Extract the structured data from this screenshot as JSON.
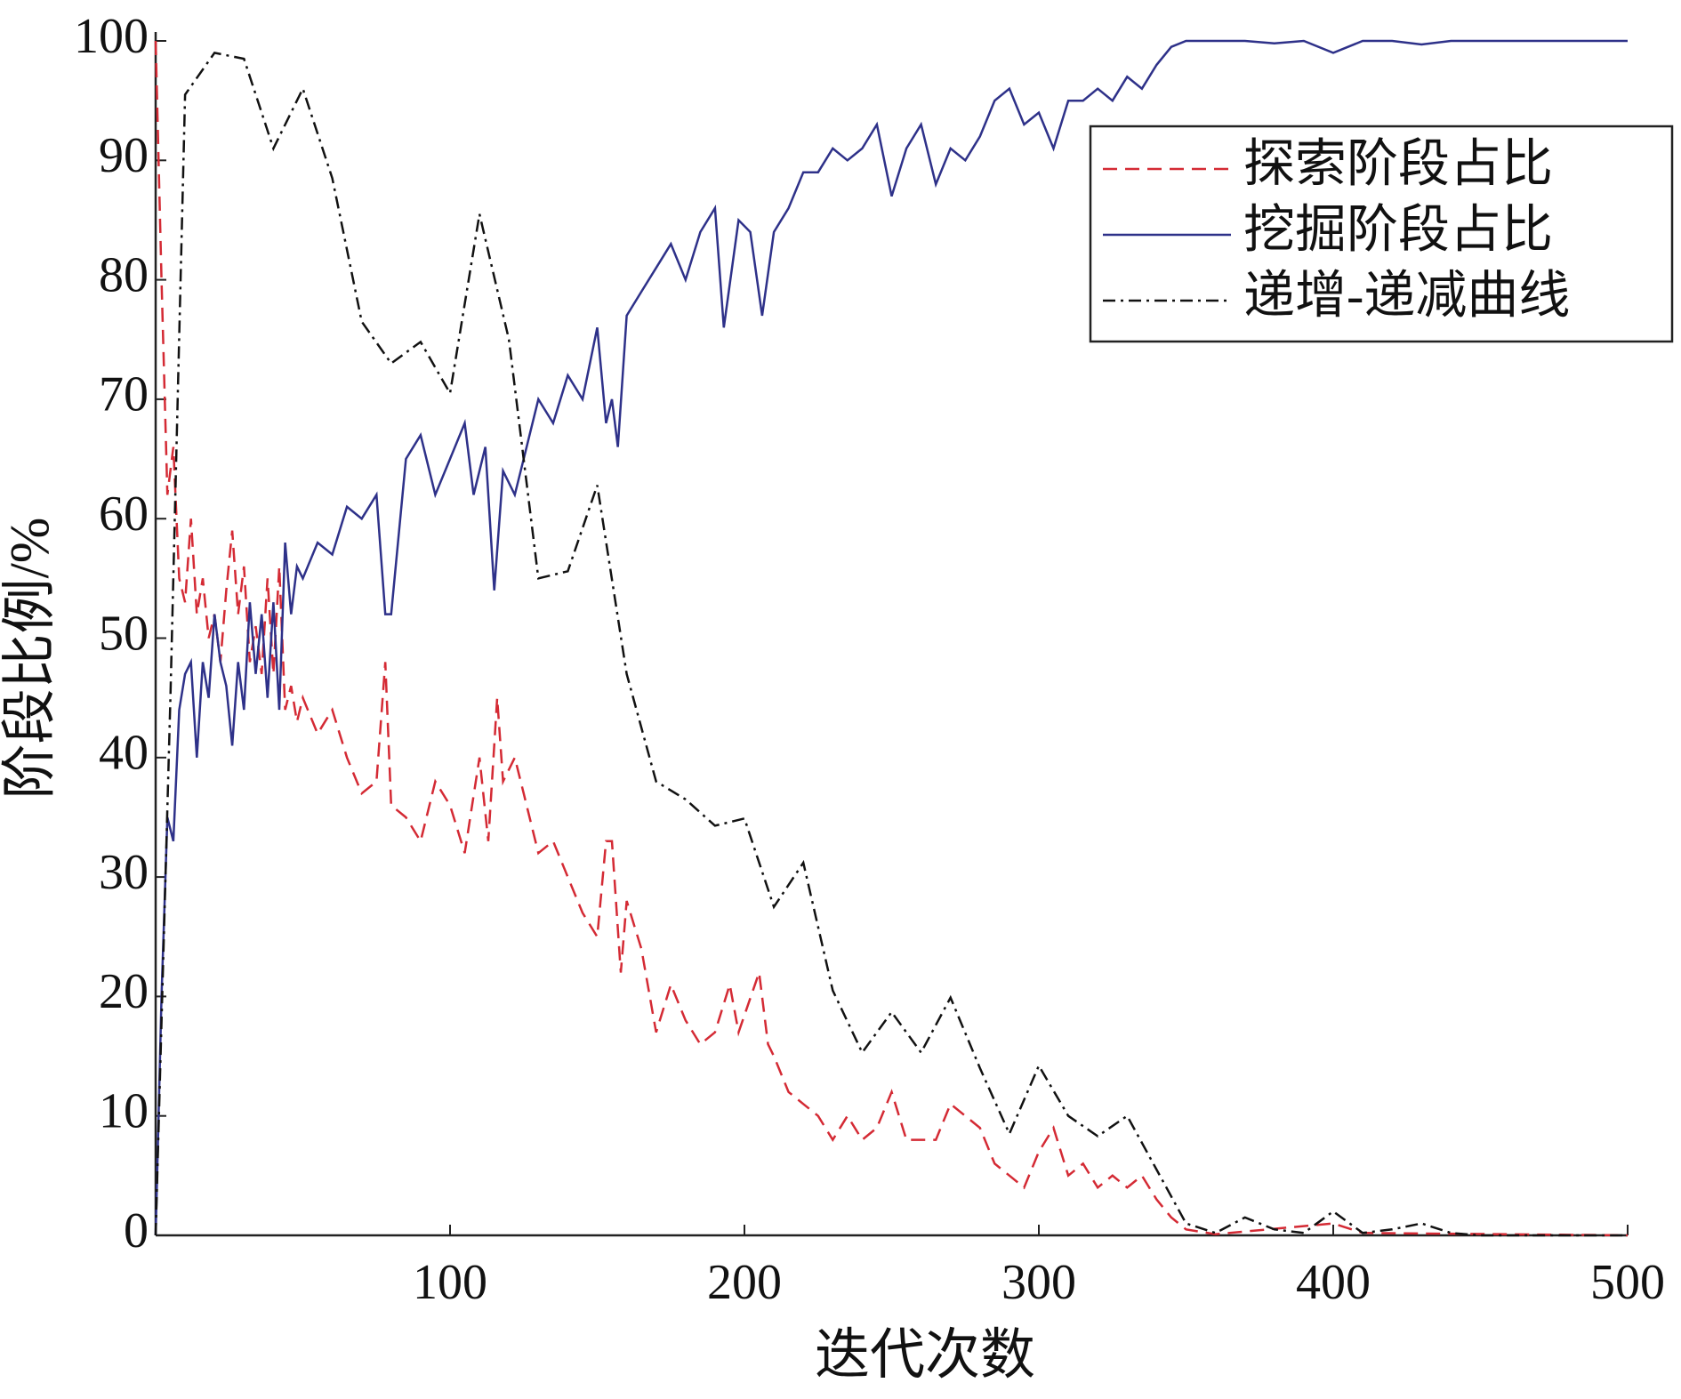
{
  "chart_data": {
    "type": "line",
    "xlabel": "迭代次数",
    "ylabel": "阶段比例/%",
    "xlim": [
      0,
      500
    ],
    "xticks": [
      100,
      200,
      300,
      400,
      500
    ],
    "ylim": [
      0,
      100
    ],
    "yticks": [
      0,
      10,
      20,
      30,
      40,
      50,
      60,
      70,
      80,
      90,
      100
    ],
    "legend": "upper right",
    "series": [
      {
        "name": "探索阶段占比",
        "color": "#d42a34",
        "style": "dashed",
        "x": [
          0,
          2,
          4,
          6,
          8,
          10,
          12,
          14,
          16,
          18,
          20,
          22,
          24,
          26,
          28,
          30,
          32,
          34,
          36,
          38,
          40,
          42,
          44,
          46,
          48,
          50,
          55,
          60,
          65,
          70,
          75,
          78,
          80,
          85,
          90,
          95,
          100,
          105,
          110,
          113,
          116,
          118,
          122,
          125,
          130,
          135,
          140,
          145,
          150,
          153,
          155,
          158,
          160,
          165,
          170,
          175,
          180,
          185,
          190,
          195,
          198,
          205,
          208,
          210,
          215,
          220,
          225,
          230,
          235,
          240,
          245,
          250,
          255,
          260,
          265,
          270,
          275,
          280,
          285,
          290,
          295,
          300,
          305,
          310,
          315,
          320,
          325,
          330,
          335,
          340,
          345,
          350,
          360,
          400,
          410,
          500
        ],
        "values": [
          100,
          80,
          62,
          66,
          55,
          53,
          60,
          52,
          55,
          50,
          52,
          48,
          54,
          59,
          52,
          56,
          48,
          51,
          47,
          55,
          47,
          56,
          44,
          46,
          43,
          45,
          42,
          44,
          40,
          37,
          38,
          48,
          36,
          35,
          33,
          38,
          36,
          32,
          40,
          33,
          45,
          38,
          40,
          37,
          32,
          33,
          30,
          27,
          25,
          33,
          33,
          22,
          28,
          24,
          17,
          21,
          18,
          16,
          17,
          21,
          17,
          22,
          16,
          15,
          12,
          11,
          10,
          8,
          10,
          8,
          9,
          12,
          8,
          8,
          8,
          11,
          10,
          9,
          6,
          5,
          4,
          7,
          9,
          5,
          6,
          4,
          5,
          4,
          5,
          3,
          1.5,
          0.5,
          0.1,
          1,
          0.2,
          0
        ]
      },
      {
        "name": "挖掘阶段占比",
        "color": "#2e3189",
        "style": "solid",
        "x": [
          0,
          2,
          4,
          6,
          8,
          10,
          12,
          14,
          16,
          18,
          20,
          22,
          24,
          26,
          28,
          30,
          32,
          34,
          36,
          38,
          40,
          42,
          44,
          46,
          48,
          50,
          55,
          60,
          65,
          70,
          75,
          78,
          80,
          85,
          90,
          95,
          100,
          105,
          108,
          112,
          115,
          118,
          122,
          125,
          130,
          135,
          140,
          145,
          150,
          153,
          155,
          157,
          160,
          165,
          170,
          175,
          180,
          185,
          190,
          193,
          198,
          202,
          206,
          210,
          215,
          220,
          225,
          230,
          235,
          240,
          245,
          250,
          255,
          260,
          265,
          270,
          275,
          280,
          285,
          290,
          295,
          300,
          305,
          310,
          315,
          320,
          325,
          330,
          335,
          340,
          345,
          350,
          360,
          370,
          380,
          390,
          400,
          405,
          410,
          420,
          430,
          440,
          500
        ],
        "values": [
          0,
          20,
          35,
          33,
          44,
          47,
          48,
          40,
          48,
          45,
          52,
          48,
          46,
          41,
          48,
          44,
          53,
          47,
          52,
          45,
          53,
          44,
          58,
          52,
          56,
          55,
          58,
          57,
          61,
          60,
          62,
          52,
          52,
          65,
          67,
          62,
          65,
          68,
          62,
          66,
          54,
          64,
          62,
          65,
          70,
          68,
          72,
          70,
          76,
          68,
          70,
          66,
          77,
          79,
          81,
          83,
          80,
          84,
          86,
          76,
          85,
          84,
          77,
          84,
          86,
          89,
          89,
          91,
          90,
          91,
          93,
          87,
          91,
          93,
          88,
          91,
          90,
          92,
          95,
          96,
          93,
          94,
          91,
          95,
          95,
          96,
          95,
          97,
          96,
          98,
          99.5,
          100,
          100,
          100,
          99.8,
          100,
          99,
          99.5,
          100,
          100,
          99.7,
          100,
          100
        ]
      },
      {
        "name": "递增-递减曲线",
        "color": "#111111",
        "style": "dashdot",
        "x": [
          0,
          5,
          10,
          20,
          30,
          40,
          50,
          60,
          70,
          80,
          90,
          100,
          110,
          120,
          130,
          140,
          150,
          160,
          170,
          180,
          190,
          200,
          210,
          220,
          230,
          240,
          250,
          260,
          270,
          280,
          290,
          300,
          310,
          320,
          330,
          340,
          350,
          360,
          370,
          380,
          390,
          400,
          410,
          420,
          430,
          440,
          450,
          500
        ],
        "values": [
          0,
          45,
          95.5,
          99,
          98.5,
          91,
          96,
          88.5,
          76.5,
          73,
          74.8,
          70.5,
          85.5,
          75,
          55,
          55.6,
          62.8,
          47,
          38,
          36.5,
          34.3,
          34.9,
          27.5,
          31.2,
          20.5,
          15.3,
          18.7,
          15.3,
          19.9,
          14,
          8.5,
          14.2,
          10,
          8.3,
          10,
          5.5,
          1,
          0.2,
          1.5,
          0.5,
          0.2,
          2,
          0.2,
          0.5,
          1,
          0.2,
          0,
          0
        ]
      }
    ]
  }
}
